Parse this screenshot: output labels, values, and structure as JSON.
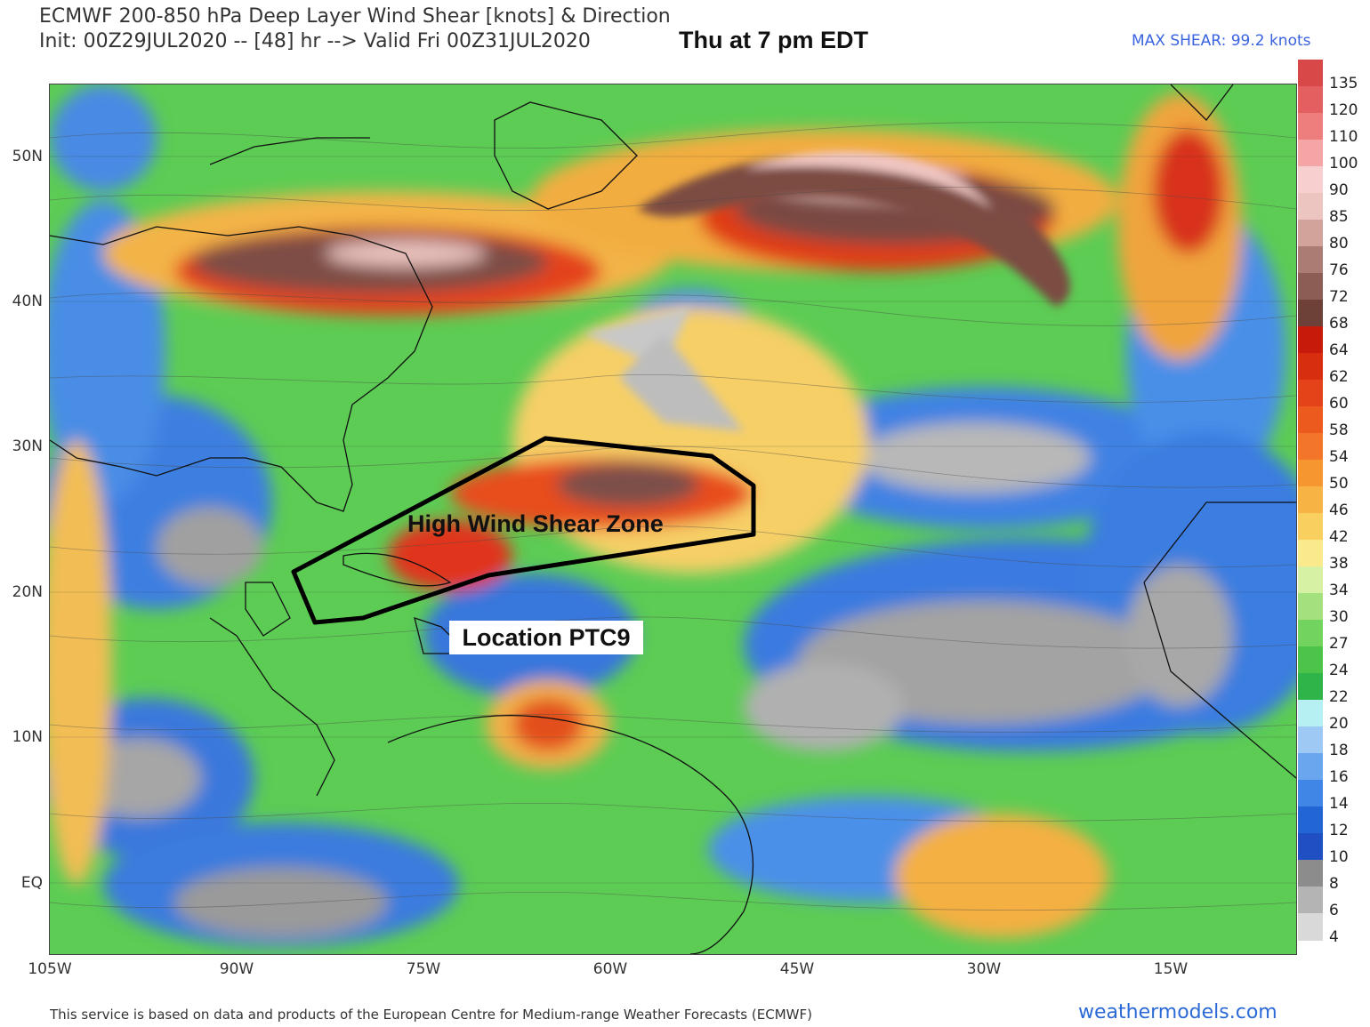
{
  "header": {
    "title_line1": "ECMWF 200-850 hPa Deep Layer Wind Shear [knots] & Direction",
    "title_line2": "Init: 00Z29JUL2020 -- [48] hr --> Valid Fri 00Z31JUL2020",
    "valid_local": "Thu at 7 pm EDT",
    "max_shear": "MAX SHEAR: 99.2 knots"
  },
  "map": {
    "lat_labels": [
      "50N",
      "40N",
      "30N",
      "20N",
      "10N",
      "EQ"
    ],
    "lon_labels": [
      "105W",
      "90W",
      "75W",
      "60W",
      "45W",
      "30W",
      "15W"
    ],
    "annotations": {
      "zone_label": "High Wind Shear Zone",
      "location_label": "Location PTC9",
      "zone_outline_color": "#000000"
    }
  },
  "colorbar": {
    "units": "knots",
    "levels": [
      "135",
      "120",
      "110",
      "100",
      "90",
      "85",
      "80",
      "76",
      "72",
      "68",
      "64",
      "62",
      "60",
      "58",
      "54",
      "50",
      "46",
      "42",
      "38",
      "34",
      "30",
      "27",
      "24",
      "22",
      "20",
      "18",
      "16",
      "14",
      "12",
      "10",
      "8",
      "6",
      "4"
    ],
    "colors": [
      "#d94848",
      "#e46060",
      "#ee7d7d",
      "#f5a5a5",
      "#f8cfcf",
      "#ecc5c0",
      "#d1a39b",
      "#aa7c73",
      "#8b5d54",
      "#6d4038",
      "#c81a0a",
      "#d82e10",
      "#e44218",
      "#ec5a1e",
      "#f2752a",
      "#f5962e",
      "#f7b445",
      "#f9d060",
      "#fbea8c",
      "#d6f0a4",
      "#a4e07e",
      "#72d35f",
      "#4cc44a",
      "#2fb44a",
      "#b6f0f2",
      "#9fc9f5",
      "#6aa6ee",
      "#3f86e6",
      "#2266d6",
      "#1f4fc2",
      "#8c8c8c",
      "#b4b4b4",
      "#d9d9d9"
    ]
  },
  "footer": {
    "credit": "This service is based on data and products of the European Centre for Medium-range Weather Forecasts (ECMWF)",
    "site": "weathermodels.com"
  }
}
